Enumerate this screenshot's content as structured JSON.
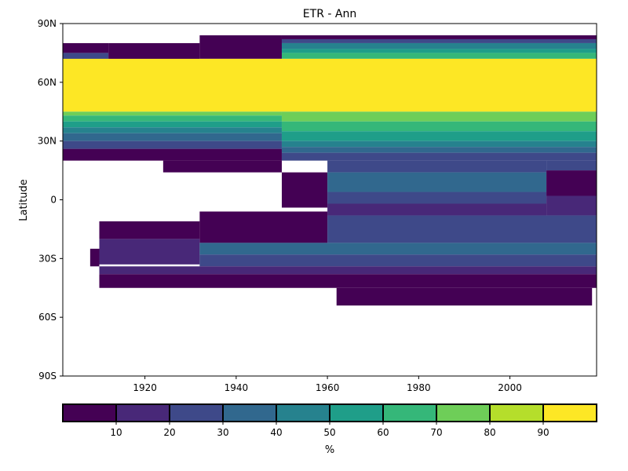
{
  "chart_data": {
    "type": "heatmap",
    "title": "ETR - Ann",
    "xlabel": "",
    "ylabel": "Latitude",
    "xlim": [
      1902,
      2019
    ],
    "ylim": [
      -90,
      90
    ],
    "x_ticks": [
      1920,
      1940,
      1960,
      1980,
      2000
    ],
    "x_tick_labels": [
      "1920",
      "1940",
      "1960",
      "1980",
      "2000"
    ],
    "y_ticks": [
      90,
      60,
      30,
      0,
      -30,
      -60,
      -90
    ],
    "y_tick_labels": [
      "90N",
      "60N",
      "30N",
      "0",
      "30S",
      "60S",
      "90S"
    ],
    "grid": false,
    "colorbar": {
      "label": "%",
      "orientation": "horizontal",
      "range": [
        0,
        100
      ],
      "bins": [
        {
          "from": 0,
          "to": 10,
          "color": "#440154"
        },
        {
          "from": 10,
          "to": 20,
          "color": "#482878"
        },
        {
          "from": 20,
          "to": 30,
          "color": "#3e4989"
        },
        {
          "from": 30,
          "to": 40,
          "color": "#31688e"
        },
        {
          "from": 40,
          "to": 50,
          "color": "#26828e"
        },
        {
          "from": 50,
          "to": 60,
          "color": "#1f9e89"
        },
        {
          "from": 60,
          "to": 70,
          "color": "#35b779"
        },
        {
          "from": 70,
          "to": 80,
          "color": "#6ece58"
        },
        {
          "from": 80,
          "to": 90,
          "color": "#b5de2b"
        },
        {
          "from": 90,
          "to": 100,
          "color": "#fde725"
        }
      ],
      "ticks": [
        10,
        20,
        30,
        40,
        50,
        60,
        70,
        80,
        90
      ],
      "tick_labels": [
        "10",
        "20",
        "30",
        "40",
        "50",
        "60",
        "70",
        "80",
        "90"
      ]
    },
    "regions": [
      {
        "x": [
          1902,
          1912
        ],
        "y": [
          75,
          80
        ],
        "value": 5
      },
      {
        "x": [
          1902,
          1912
        ],
        "y": [
          70,
          75
        ],
        "value": 25
      },
      {
        "x": [
          1912,
          1932
        ],
        "y": [
          70,
          80
        ],
        "value": 5
      },
      {
        "x": [
          1932,
          1950
        ],
        "y": [
          72,
          84
        ],
        "value": 5
      },
      {
        "x": [
          1950,
          2019
        ],
        "y": [
          82,
          84
        ],
        "value": 5
      },
      {
        "x": [
          1950,
          2019
        ],
        "y": [
          80,
          82
        ],
        "value": 25
      },
      {
        "x": [
          1950,
          2019
        ],
        "y": [
          77,
          80
        ],
        "value": 45
      },
      {
        "x": [
          1950,
          2019
        ],
        "y": [
          75,
          77
        ],
        "value": 55
      },
      {
        "x": [
          1950,
          2019
        ],
        "y": [
          72,
          75
        ],
        "value": 65
      },
      {
        "x": [
          1902,
          2019
        ],
        "y": [
          45,
          72
        ],
        "value": 95
      },
      {
        "x": [
          1902,
          1950
        ],
        "y": [
          43,
          45
        ],
        "value": 75
      },
      {
        "x": [
          1902,
          1950
        ],
        "y": [
          40,
          43
        ],
        "value": 65
      },
      {
        "x": [
          1902,
          1950
        ],
        "y": [
          37,
          40
        ],
        "value": 55
      },
      {
        "x": [
          1902,
          1950
        ],
        "y": [
          34,
          37
        ],
        "value": 45
      },
      {
        "x": [
          1902,
          1950
        ],
        "y": [
          30,
          34
        ],
        "value": 35
      },
      {
        "x": [
          1902,
          1950
        ],
        "y": [
          26,
          30
        ],
        "value": 25
      },
      {
        "x": [
          1902,
          1950
        ],
        "y": [
          20,
          26
        ],
        "value": 5
      },
      {
        "x": [
          1950,
          2019
        ],
        "y": [
          40,
          45
        ],
        "value": 75
      },
      {
        "x": [
          1950,
          2019
        ],
        "y": [
          35,
          40
        ],
        "value": 65
      },
      {
        "x": [
          1950,
          2019
        ],
        "y": [
          30,
          35
        ],
        "value": 55
      },
      {
        "x": [
          1950,
          2019
        ],
        "y": [
          27,
          30
        ],
        "value": 45
      },
      {
        "x": [
          1950,
          2019
        ],
        "y": [
          24,
          27
        ],
        "value": 35
      },
      {
        "x": [
          1950,
          2019
        ],
        "y": [
          20,
          24
        ],
        "value": 25
      },
      {
        "x": [
          1924,
          1950
        ],
        "y": [
          14,
          20
        ],
        "value": 5
      },
      {
        "x": [
          1950,
          1960
        ],
        "y": [
          -4,
          14
        ],
        "value": 5
      },
      {
        "x": [
          1960,
          2008
        ],
        "y": [
          14,
          20
        ],
        "value": 25
      },
      {
        "x": [
          1960,
          2008
        ],
        "y": [
          4,
          14
        ],
        "value": 35
      },
      {
        "x": [
          1960,
          2008
        ],
        "y": [
          -2,
          4
        ],
        "value": 25
      },
      {
        "x": [
          1960,
          2008
        ],
        "y": [
          -8,
          -2
        ],
        "value": 15
      },
      {
        "x": [
          2008,
          2019
        ],
        "y": [
          15,
          20
        ],
        "value": 25
      },
      {
        "x": [
          2008,
          2019
        ],
        "y": [
          2,
          15
        ],
        "value": 5
      },
      {
        "x": [
          2008,
          2019
        ],
        "y": [
          -8,
          2
        ],
        "value": 15
      },
      {
        "x": [
          1932,
          1960
        ],
        "y": [
          -22,
          -6
        ],
        "value": 5
      },
      {
        "x": [
          1960,
          2019
        ],
        "y": [
          -22,
          -8
        ],
        "value": 25
      },
      {
        "x": [
          1910,
          1932
        ],
        "y": [
          -20,
          -11
        ],
        "value": 5
      },
      {
        "x": [
          1910,
          1932
        ],
        "y": [
          -33,
          -20
        ],
        "value": 15
      },
      {
        "x": [
          1908,
          1910
        ],
        "y": [
          -34,
          -25
        ],
        "value": 5
      },
      {
        "x": [
          1932,
          2019
        ],
        "y": [
          -28,
          -22
        ],
        "value": 35
      },
      {
        "x": [
          1932,
          2019
        ],
        "y": [
          -34,
          -28
        ],
        "value": 25
      },
      {
        "x": [
          1910,
          2019
        ],
        "y": [
          -38,
          -34
        ],
        "value": 15
      },
      {
        "x": [
          1910,
          2019
        ],
        "y": [
          -45,
          -38
        ],
        "value": 5
      },
      {
        "x": [
          1962,
          2018
        ],
        "y": [
          -54,
          -45
        ],
        "value": 5
      }
    ]
  }
}
